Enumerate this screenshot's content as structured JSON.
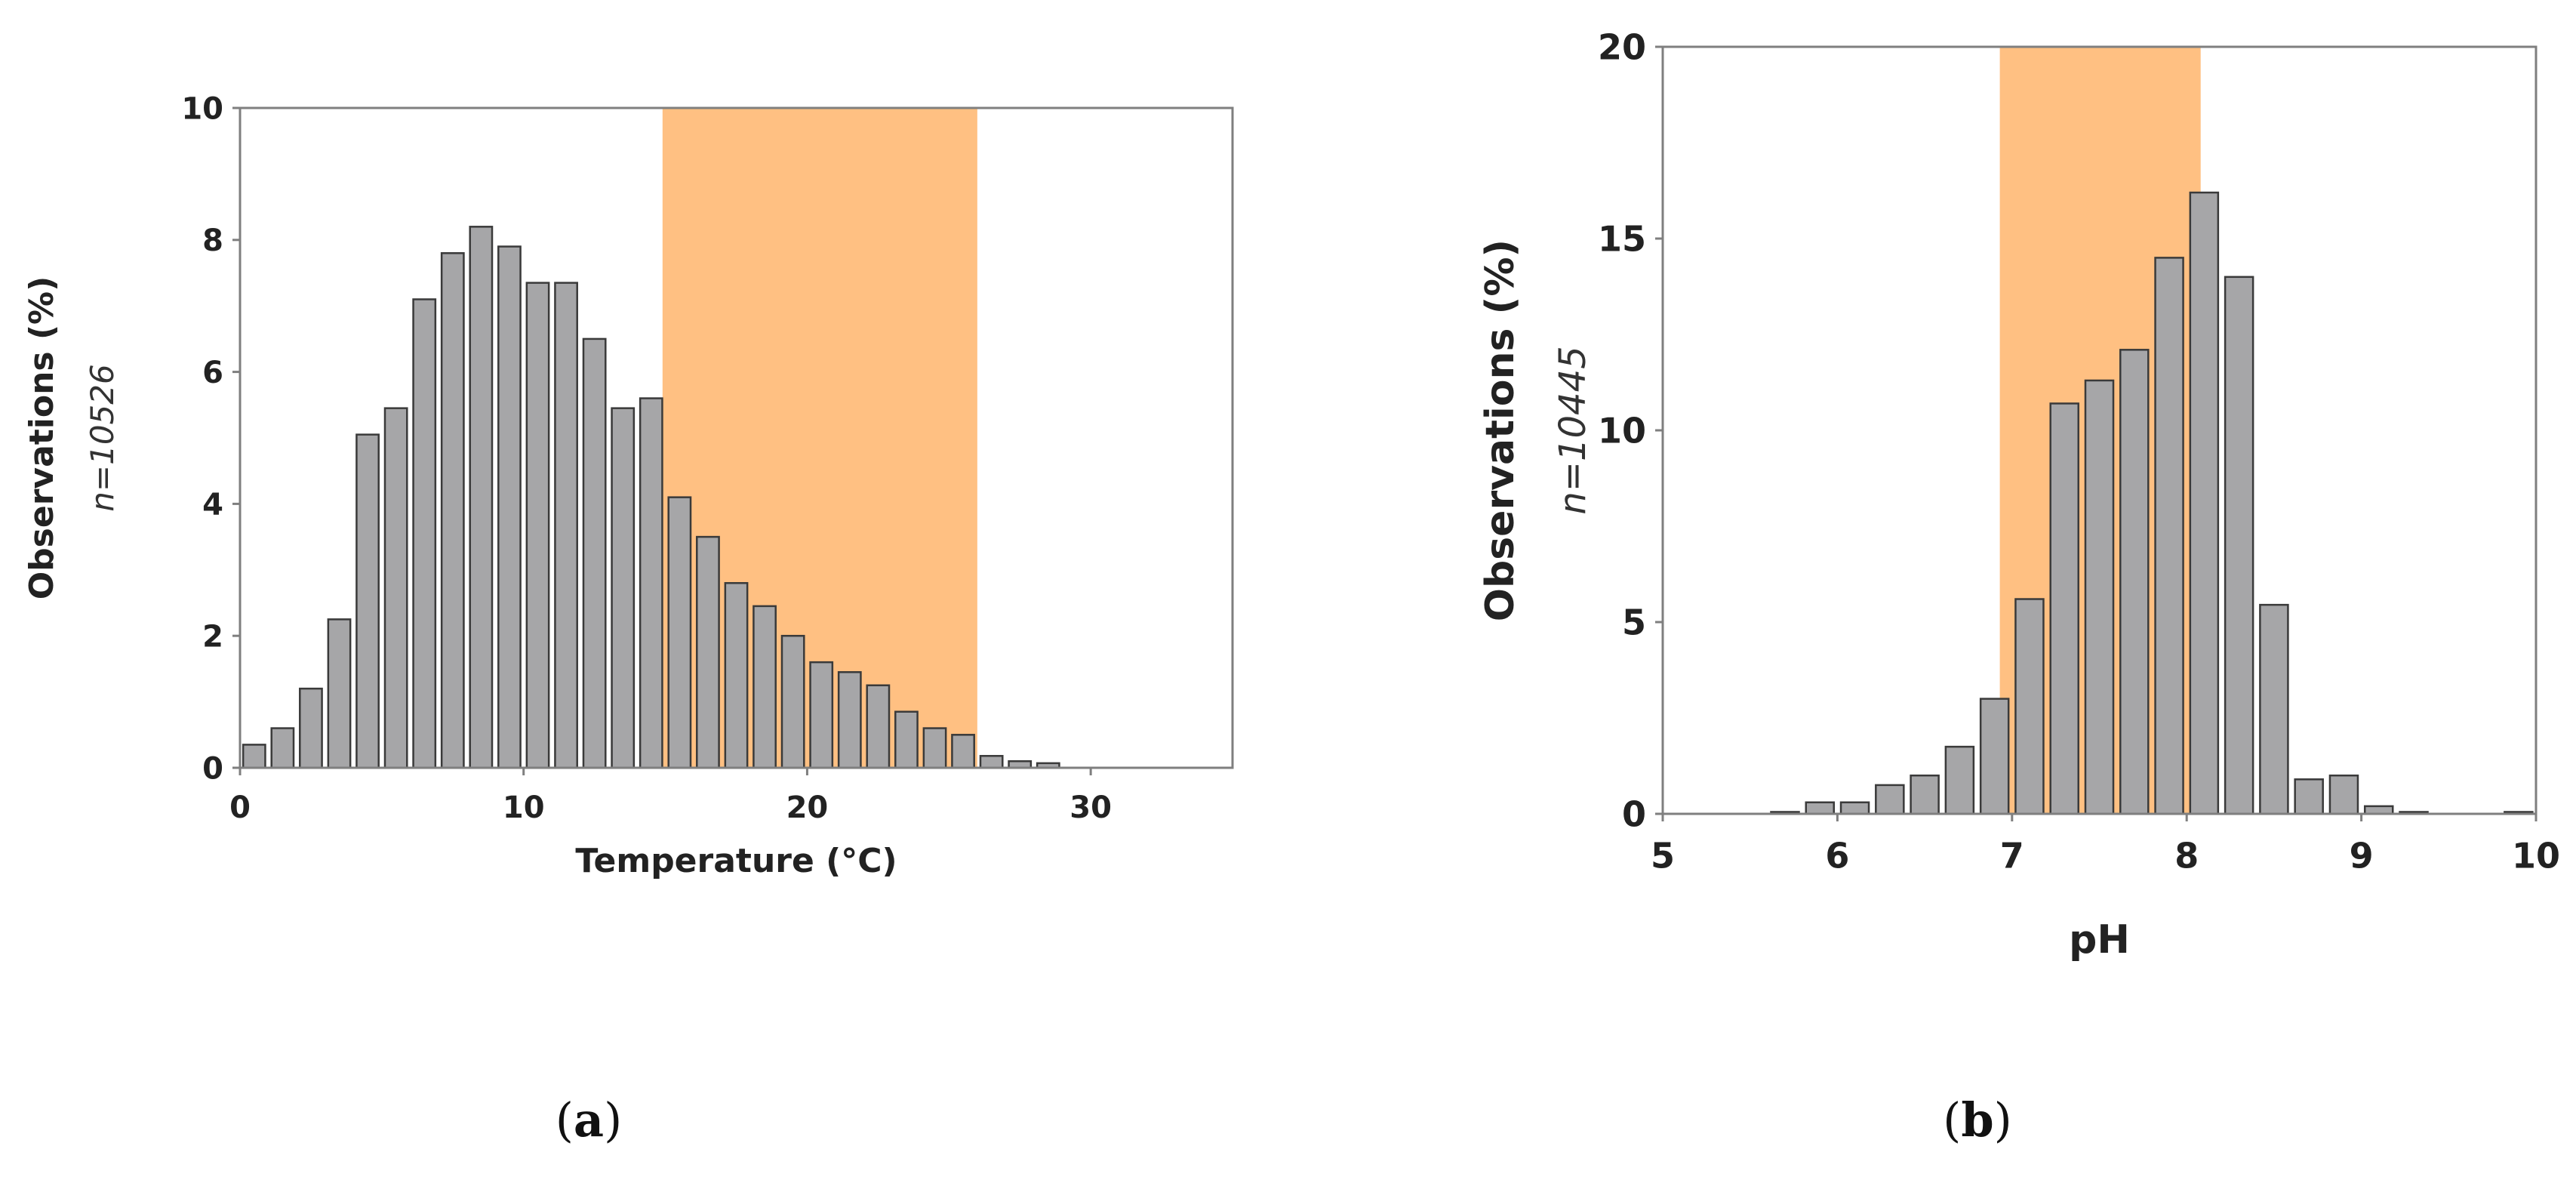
{
  "colors": {
    "bar_fill": "#a6a6a8",
    "bar_stroke": "#3a3a3a",
    "optimal_band": "#ffc082",
    "axis": "#7f7f7f",
    "text": "#222222"
  },
  "chart_data": [
    {
      "panel_label": "(a)",
      "panel_open": "(",
      "panel_letter": "a",
      "panel_close": ")",
      "type": "bar",
      "title": "",
      "xlabel": "Temperature (°C)",
      "ylabel": "Observations (%)",
      "n_label": "n=10526",
      "xlim": [
        0,
        35
      ],
      "ylim": [
        0,
        10
      ],
      "xticks": [
        0,
        10,
        20,
        30
      ],
      "yticks": [
        0,
        2,
        4,
        6,
        8,
        10
      ],
      "bin_width": 1,
      "shaded_range": [
        14.9,
        26.0
      ],
      "grid": false,
      "legend": "none",
      "x": [
        0.5,
        1.5,
        2.5,
        3.5,
        4.5,
        5.5,
        6.5,
        7.5,
        8.5,
        9.5,
        10.5,
        11.5,
        12.5,
        13.5,
        14.5,
        15.5,
        16.5,
        17.5,
        18.5,
        19.5,
        20.5,
        21.5,
        22.5,
        23.5,
        24.5,
        25.5,
        26.5,
        27.5,
        28.5
      ],
      "values": [
        0.35,
        0.6,
        1.2,
        2.25,
        5.05,
        5.45,
        7.1,
        7.8,
        8.2,
        7.9,
        7.35,
        7.35,
        6.5,
        5.45,
        5.6,
        4.1,
        3.5,
        2.8,
        2.45,
        2.0,
        1.6,
        1.45,
        1.25,
        0.85,
        0.6,
        0.5,
        0.18,
        0.1,
        0.07
      ]
    },
    {
      "panel_label": "(b)",
      "panel_open": "(",
      "panel_letter": "b",
      "panel_close": ")",
      "type": "bar",
      "title": "",
      "xlabel": "pH",
      "ylabel": "Observations (%)",
      "n_label": "n=10445",
      "xlim": [
        5,
        10
      ],
      "ylim": [
        0,
        20
      ],
      "xticks": [
        5,
        6,
        7,
        8,
        9,
        10
      ],
      "yticks": [
        0,
        5,
        10,
        15,
        20
      ],
      "bin_width": 0.2,
      "shaded_range": [
        6.93,
        8.08
      ],
      "grid": false,
      "legend": "none",
      "x": [
        5.7,
        5.9,
        6.1,
        6.3,
        6.5,
        6.7,
        6.9,
        7.1,
        7.3,
        7.5,
        7.7,
        7.9,
        8.1,
        8.3,
        8.5,
        8.7,
        8.9,
        9.1,
        9.3,
        9.9
      ],
      "values": [
        0.05,
        0.3,
        0.3,
        0.75,
        1.0,
        1.75,
        3.0,
        5.6,
        10.7,
        11.3,
        12.1,
        14.5,
        16.2,
        14.0,
        5.45,
        0.9,
        1.0,
        0.2,
        0.05,
        0.05
      ]
    }
  ]
}
